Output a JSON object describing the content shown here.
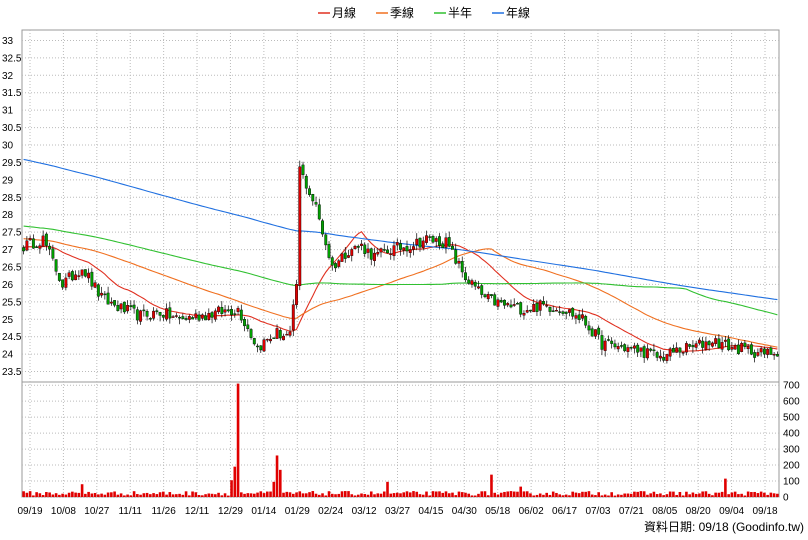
{
  "chart_data": {
    "type": "candlestick",
    "legend": [
      {
        "name": "月線",
        "color": "#e03020"
      },
      {
        "name": "季線",
        "color": "#f07020"
      },
      {
        "name": "半年",
        "color": "#30c030"
      },
      {
        "name": "年線",
        "color": "#2070e0"
      }
    ],
    "price_axis": {
      "ylim": [
        23.2,
        33.3
      ],
      "ticks": [
        "33",
        "32.5",
        "32",
        "31.5",
        "31",
        "30.5",
        "30",
        "29.5",
        "29",
        "28.5",
        "28",
        "27.5",
        "27",
        "26.5",
        "26",
        "25.5",
        "25",
        "24.5",
        "24",
        "23.5"
      ],
      "tick_values": [
        33,
        32.5,
        32,
        31.5,
        31,
        30.5,
        30,
        29.5,
        29,
        28.5,
        28,
        27.5,
        27,
        26.5,
        26,
        25.5,
        25,
        24.5,
        24,
        23.5
      ]
    },
    "volume_axis": {
      "ylim": [
        0,
        720
      ],
      "ticks": [
        "700",
        "600",
        "500",
        "400",
        "300",
        "200",
        "100",
        "0"
      ],
      "tick_values": [
        700,
        600,
        500,
        400,
        300,
        200,
        100,
        0
      ]
    },
    "x_tick_labels": [
      "09/19",
      "10/08",
      "10/27",
      "11/11",
      "11/26",
      "12/11",
      "12/29",
      "01/14",
      "01/29",
      "02/24",
      "03/12",
      "03/27",
      "04/15",
      "04/30",
      "05/18",
      "06/02",
      "06/17",
      "07/03",
      "07/21",
      "08/05",
      "08/20",
      "09/04",
      "09/18"
    ],
    "anchors": [
      [
        0,
        27.1
      ],
      [
        6,
        27.3
      ],
      [
        12,
        26.0
      ],
      [
        18,
        26.5
      ],
      [
        24,
        25.6
      ],
      [
        30,
        25.3
      ],
      [
        36,
        25.1
      ],
      [
        42,
        25.2
      ],
      [
        48,
        25.0
      ],
      [
        54,
        25.1
      ],
      [
        60,
        25.2
      ],
      [
        66,
        25.3
      ],
      [
        72,
        24.2
      ],
      [
        78,
        24.6
      ],
      [
        82,
        24.5
      ],
      [
        84,
        26.0
      ],
      [
        85,
        29.3
      ],
      [
        90,
        28.2
      ],
      [
        95,
        26.5
      ],
      [
        100,
        27.0
      ],
      [
        104,
        27.1
      ],
      [
        108,
        26.8
      ],
      [
        113,
        27.0
      ],
      [
        118,
        27.1
      ],
      [
        124,
        27.3
      ],
      [
        130,
        27.2
      ],
      [
        136,
        26.2
      ],
      [
        142,
        25.6
      ],
      [
        148,
        25.4
      ],
      [
        154,
        25.3
      ],
      [
        160,
        25.4
      ],
      [
        166,
        25.3
      ],
      [
        172,
        25.0
      ],
      [
        178,
        24.3
      ],
      [
        184,
        24.2
      ],
      [
        190,
        24.1
      ],
      [
        196,
        23.9
      ],
      [
        201,
        24.1
      ],
      [
        206,
        24.2
      ],
      [
        212,
        24.4
      ],
      [
        218,
        24.2
      ],
      [
        224,
        24.1
      ],
      [
        228,
        24.0
      ],
      [
        232,
        24.1
      ]
    ],
    "candles": 233,
    "moving_averages": [
      {
        "name": "月線",
        "window": 20
      },
      {
        "name": "季線",
        "window": 60
      },
      {
        "name": "半年",
        "window": 120
      },
      {
        "name": "年線",
        "window": 240
      }
    ],
    "volume_baseline": 22,
    "volume_spikes": [
      [
        66,
        710
      ],
      [
        65,
        190
      ],
      [
        64,
        105
      ],
      [
        78,
        260
      ],
      [
        79,
        170
      ],
      [
        77,
        95
      ],
      [
        18,
        80
      ],
      [
        112,
        95
      ],
      [
        144,
        140
      ],
      [
        153,
        65
      ],
      [
        216,
        115
      ]
    ],
    "grid": true,
    "credit": "資料日期: 09/18  (Goodinfo.tw)"
  }
}
